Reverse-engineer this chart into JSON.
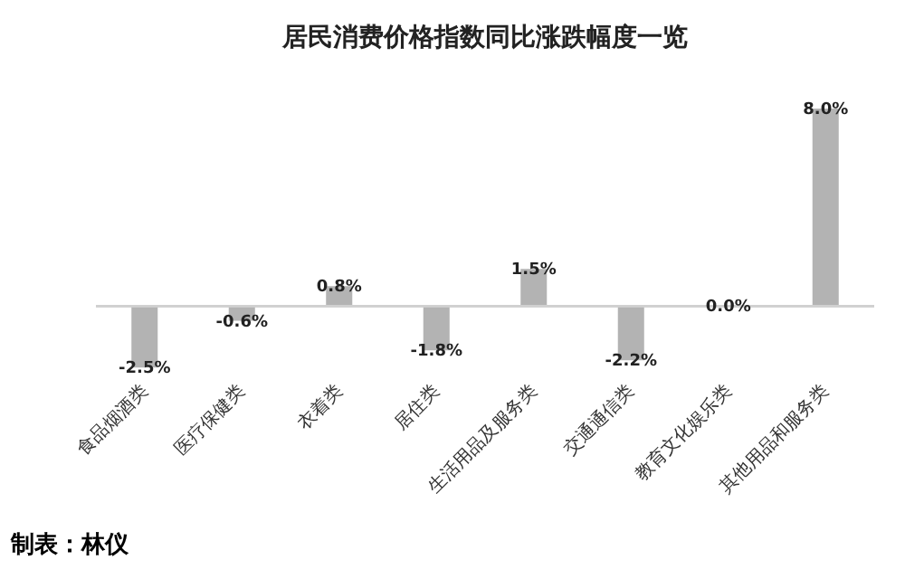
{
  "chart_data": {
    "type": "bar",
    "title": "居民消费价格指数同比涨跌幅度一览",
    "categories": [
      "食品烟酒类",
      "医疗保健类",
      "衣着类",
      "居住类",
      "生活用品及服务类",
      "交通通信类",
      "教育文化娱乐类",
      "其他用品和服务类"
    ],
    "values": [
      -2.5,
      -0.6,
      0.8,
      -1.8,
      1.5,
      -2.2,
      0.0,
      8.0
    ],
    "value_labels": [
      "-2.5%",
      "-0.6%",
      "0.8%",
      "-1.8%",
      "1.5%",
      "-2.2%",
      "0.0%",
      "8.0%"
    ],
    "color": "#b3b3b3",
    "ref_lines": [
      {
        "axis": "y",
        "value": 0,
        "color": "#d0d0d0"
      }
    ],
    "tick_labels": "x",
    "annotations": [
      "制表：林仪"
    ]
  }
}
